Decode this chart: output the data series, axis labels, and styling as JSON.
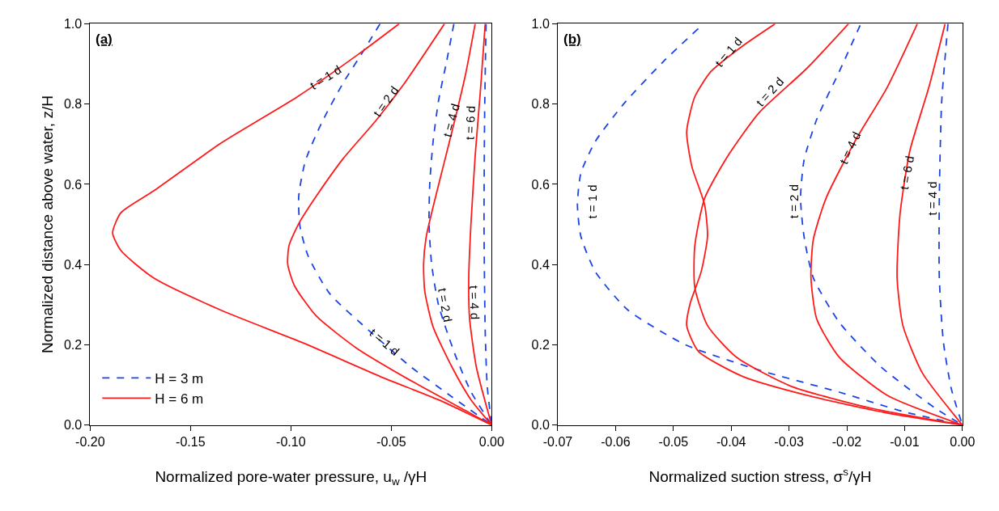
{
  "chart_data": [
    {
      "type": "line",
      "title": "(a)",
      "xlabel": "Normalized pore-water pressure, u$_{w}$ /γH",
      "ylabel": "Normalized distance above water, z/H",
      "xlim": [
        -0.2,
        0
      ],
      "xticks": [
        {
          "value": -0.2,
          "label": "-0.20"
        },
        {
          "value": -0.15,
          "label": "-0.15"
        },
        {
          "value": -0.1,
          "label": "-0.10"
        },
        {
          "value": -0.05,
          "label": "-0.05"
        },
        {
          "value": 0,
          "label": "0.00"
        }
      ],
      "ylim": [
        0,
        1
      ],
      "yticks": [
        {
          "value": 0,
          "label": "0.0"
        },
        {
          "value": 0.2,
          "label": "0.2"
        },
        {
          "value": 0.4,
          "label": "0.4"
        },
        {
          "value": 0.6,
          "label": "0.6"
        },
        {
          "value": 0.8,
          "label": "0.8"
        },
        {
          "value": 1,
          "label": "1.0"
        }
      ],
      "legend": "bottom left",
      "marker": "none",
      "series": [
        {
          "name": "H = 3 m",
          "color": "#1a44e6",
          "line_style": "dashed",
          "x": [
            -0.0556,
            -0.0644,
            -0.0738,
            -0.0847,
            -0.0928,
            -0.0961,
            -0.0955,
            -0.0914,
            -0.0806,
            -0.0603,
            -0.04,
            -0.0197,
            0
          ],
          "values": [
            1.0,
            0.928,
            0.854,
            0.753,
            0.658,
            0.57,
            0.496,
            0.421,
            0.327,
            0.232,
            0.144,
            0.07,
            0
          ]
        },
        {
          "color": "#1a44e6",
          "line_style": "dashed",
          "x": [
            -0.0188,
            -0.0224,
            -0.0265,
            -0.0292,
            -0.0308,
            -0.0312,
            -0.0299,
            -0.0265,
            -0.0184,
            -0.0103,
            0
          ],
          "values": [
            1.0,
            0.907,
            0.807,
            0.705,
            0.604,
            0.502,
            0.401,
            0.3,
            0.178,
            0.083,
            0
          ]
        },
        {
          "color": "#1a44e6",
          "line_style": "dashed",
          "x": [
            -0.0028,
            -0.0035,
            -0.0038,
            -0.0032,
            -0.0022,
            0
          ],
          "values": [
            1.0,
            0.773,
            0.502,
            0.232,
            0.097,
            0
          ]
        },
        {
          "name": "H = 6 m",
          "color": "#ff1a1a",
          "line_style": "solid",
          "x": [
            -0.0461,
            -0.0664,
            -0.0968,
            -0.1347,
            -0.1685,
            -0.1847,
            -0.1888,
            -0.1847,
            -0.1685,
            -0.1347,
            -0.0941,
            -0.0536,
            -0.0265,
            0
          ],
          "values": [
            1.0,
            0.924,
            0.818,
            0.703,
            0.583,
            0.529,
            0.479,
            0.435,
            0.367,
            0.286,
            0.205,
            0.117,
            0.063,
            0
          ]
        },
        {
          "color": "#ff1a1a",
          "line_style": "solid",
          "x": [
            -0.0235,
            -0.0441,
            -0.0576,
            -0.0738,
            -0.0874,
            -0.0961,
            -0.1009,
            -0.1016,
            -0.0982,
            -0.0874,
            -0.0671,
            -0.04,
            -0.013,
            0
          ],
          "values": [
            1.0,
            0.847,
            0.759,
            0.665,
            0.57,
            0.502,
            0.448,
            0.401,
            0.347,
            0.272,
            0.191,
            0.11,
            0.036,
            0
          ]
        },
        {
          "color": "#ff1a1a",
          "line_style": "solid",
          "x": [
            -0.0082,
            -0.013,
            -0.0184,
            -0.0238,
            -0.0292,
            -0.0326,
            -0.0339,
            -0.0333,
            -0.0292,
            -0.0197,
            -0.0103,
            0
          ],
          "values": [
            1.0,
            0.874,
            0.759,
            0.651,
            0.543,
            0.469,
            0.401,
            0.333,
            0.245,
            0.144,
            0.063,
            0
          ]
        },
        {
          "color": "#ff1a1a",
          "line_style": "solid",
          "x": [
            -0.0032,
            -0.0055,
            -0.0082,
            -0.0103,
            -0.0114,
            -0.011,
            -0.0076,
            0
          ],
          "values": [
            1.0,
            0.84,
            0.671,
            0.502,
            0.367,
            0.266,
            0.144,
            0
          ]
        }
      ],
      "annotations": [
        {
          "text": "t = 1 d",
          "x": -0.0827,
          "y": 0.867
        },
        {
          "text": "t = 2 d",
          "x": -0.0529,
          "y": 0.807
        },
        {
          "text": "t = 4 d",
          "x": -0.0204,
          "y": 0.759
        },
        {
          "text": "t = 6 d",
          "x": -0.0069,
          "y": 0.753
        },
        {
          "text": "t = 1 d",
          "x": -0.0535,
          "y": 0.208
        },
        {
          "text": "t = 2 d",
          "x": -0.0265,
          "y": 0.3
        },
        {
          "text": "t = 4 d",
          "x": -0.0034,
          "y": 0.306
        }
      ]
    },
    {
      "type": "line",
      "title": "(b)",
      "xlabel": "Normalized suction stress, σ$^{s}$/γH",
      "xlim": [
        -0.07,
        0
      ],
      "xticks": [
        {
          "value": -0.07,
          "label": "-0.07"
        },
        {
          "value": -0.06,
          "label": "-0.06"
        },
        {
          "value": -0.05,
          "label": "-0.05"
        },
        {
          "value": -0.04,
          "label": "-0.04"
        },
        {
          "value": -0.03,
          "label": "-0.03"
        },
        {
          "value": -0.02,
          "label": "-0.02"
        },
        {
          "value": -0.01,
          "label": "-0.01"
        },
        {
          "value": 0,
          "label": "0.00"
        }
      ],
      "ylim": [
        0,
        1
      ],
      "yticks": [
        {
          "value": 0,
          "label": "0.0"
        },
        {
          "value": 0.2,
          "label": "0.2"
        },
        {
          "value": 0.4,
          "label": "0.4"
        },
        {
          "value": 0.6,
          "label": "0.6"
        },
        {
          "value": 0.8,
          "label": "0.8"
        },
        {
          "value": 1,
          "label": "1.0"
        }
      ],
      "marker": "none",
      "series": [
        {
          "color": "#1a44e6",
          "line_style": "dashed",
          "x": [
            -0.0457,
            -0.0518,
            -0.0585,
            -0.0635,
            -0.066,
            -0.0666,
            -0.066,
            -0.0635,
            -0.0579,
            -0.0479,
            -0.0352,
            -0.0213,
            -0.0103,
            0
          ],
          "values": [
            0.988,
            0.905,
            0.802,
            0.707,
            0.628,
            0.549,
            0.47,
            0.382,
            0.287,
            0.2,
            0.137,
            0.082,
            0.034,
            0
          ]
        },
        {
          "color": "#1a44e6",
          "line_style": "dashed",
          "x": [
            -0.0177,
            -0.0213,
            -0.0252,
            -0.0274,
            -0.028,
            -0.0274,
            -0.0258,
            -0.0213,
            -0.0141,
            -0.0047,
            0
          ],
          "values": [
            0.996,
            0.881,
            0.762,
            0.66,
            0.565,
            0.47,
            0.367,
            0.256,
            0.145,
            0.042,
            0
          ]
        },
        {
          "color": "#1a44e6",
          "line_style": "dashed",
          "x": [
            -0.0025,
            -0.0036,
            -0.004,
            -0.004,
            -0.0033,
            -0.0019,
            0
          ],
          "values": [
            1.0,
            0.802,
            0.565,
            0.367,
            0.208,
            0.089,
            0
          ]
        },
        {
          "color": "#ff1a1a",
          "line_style": "solid",
          "x": [
            -0.0324,
            -0.038,
            -0.0435,
            -0.0463,
            -0.0477,
            -0.0468,
            -0.0446,
            -0.0441,
            -0.0452,
            -0.0471,
            -0.0477,
            -0.0457,
            -0.038,
            -0.0269,
            -0.013,
            0
          ],
          "values": [
            1.0,
            0.945,
            0.881,
            0.818,
            0.731,
            0.644,
            0.549,
            0.47,
            0.382,
            0.303,
            0.248,
            0.184,
            0.121,
            0.074,
            0.03,
            0
          ]
        },
        {
          "color": "#ff1a1a",
          "line_style": "solid",
          "x": [
            -0.0197,
            -0.0269,
            -0.0352,
            -0.0407,
            -0.0446,
            -0.0463,
            -0.0463,
            -0.0441,
            -0.0391,
            -0.0297,
            -0.0158,
            0
          ],
          "values": [
            1.0,
            0.889,
            0.778,
            0.668,
            0.565,
            0.446,
            0.343,
            0.248,
            0.169,
            0.097,
            0.042,
            0
          ]
        },
        {
          "color": "#ff1a1a",
          "line_style": "solid",
          "x": [
            -0.0078,
            -0.013,
            -0.0186,
            -0.0236,
            -0.0258,
            -0.0262,
            -0.0252,
            -0.0213,
            -0.013,
            0
          ],
          "values": [
            1.0,
            0.842,
            0.707,
            0.565,
            0.462,
            0.367,
            0.264,
            0.169,
            0.074,
            0
          ]
        },
        {
          "color": "#ff1a1a",
          "line_style": "solid",
          "x": [
            -0.003,
            -0.0058,
            -0.0091,
            -0.0108,
            -0.0113,
            -0.0103,
            -0.0069,
            0
          ],
          "values": [
            1.0,
            0.842,
            0.683,
            0.525,
            0.367,
            0.248,
            0.129,
            0
          ]
        }
      ],
      "annotations": [
        {
          "text": "t = 1 d",
          "x": -0.0666,
          "y": 0.557
        },
        {
          "text": "t = 1 d",
          "x": -0.0405,
          "y": 0.929
        },
        {
          "text": "t = 2 d",
          "x": -0.0315,
          "y": 0.83
        },
        {
          "text": "t = 2 d",
          "x": -0.028,
          "y": 0.557
        },
        {
          "text": "t = 4 d",
          "x": -0.0194,
          "y": 0.691
        },
        {
          "text": "t = 6 d",
          "x": -0.0097,
          "y": 0.628
        },
        {
          "text": "t = 4 d",
          "x": -0.004,
          "y": 0.565
        }
      ]
    }
  ]
}
